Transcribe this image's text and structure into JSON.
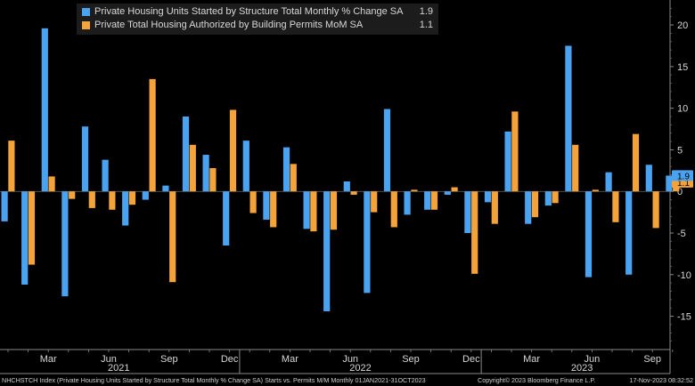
{
  "chart_data": {
    "type": "bar",
    "x_month_labels": [
      "Mar",
      "Jun",
      "Sep",
      "Dec",
      "Mar",
      "Jun",
      "Sep",
      "Dec",
      "Mar",
      "Jun",
      "Sep"
    ],
    "year_labels": [
      "2021",
      "2022",
      "2023"
    ],
    "ylim": [
      -19,
      23
    ],
    "yticks": [
      -15,
      -10,
      -5,
      0,
      5,
      10,
      15,
      20
    ],
    "grid": false,
    "legend_position": "top-left",
    "series": [
      {
        "name": "Private Housing Units Started by Structure Total Monthly % Change SA",
        "last_value_label": "1.9",
        "color": "#4aa3f0",
        "values": [
          -3.6,
          -11.2,
          19.6,
          -12.6,
          7.8,
          3.8,
          -4.1,
          -1.0,
          0.7,
          9.0,
          4.4,
          -6.5,
          6.1,
          -3.4,
          5.3,
          -4.5,
          -14.4,
          1.2,
          -12.2,
          9.9,
          -2.8,
          -2.2,
          -0.4,
          -5.0,
          -1.3,
          7.2,
          -3.9,
          -1.7,
          17.5,
          -10.3,
          2.3,
          -10.0,
          3.2,
          1.9
        ]
      },
      {
        "name": "Private Total Housing Authorized by Building Permits MoM SA",
        "last_value_label": "1.1",
        "color": "#f4a23a",
        "values": [
          6.1,
          -8.8,
          1.8,
          -0.9,
          -2.0,
          -2.2,
          -1.6,
          13.5,
          -10.9,
          5.6,
          2.8,
          9.8,
          -2.6,
          -4.3,
          3.3,
          -4.8,
          -4.6,
          -0.4,
          -2.5,
          -4.3,
          0.2,
          -2.2,
          0.5,
          -9.9,
          -3.9,
          9.6,
          -3.1,
          -1.4,
          5.6,
          0.2,
          -3.7,
          6.9,
          -4.4,
          1.1
        ]
      }
    ]
  },
  "footer": {
    "left": "NHCHSTCH Index (Private Housing Units Started by Structure Total Monthly % Change SA) Starts vs. Permits M/M  Monthly 01JAN2021-31OCT2023",
    "middle": "Copyright© 2023 Bloomberg Finance L.P.",
    "right": "17-Nov-2023 08:32:52"
  }
}
